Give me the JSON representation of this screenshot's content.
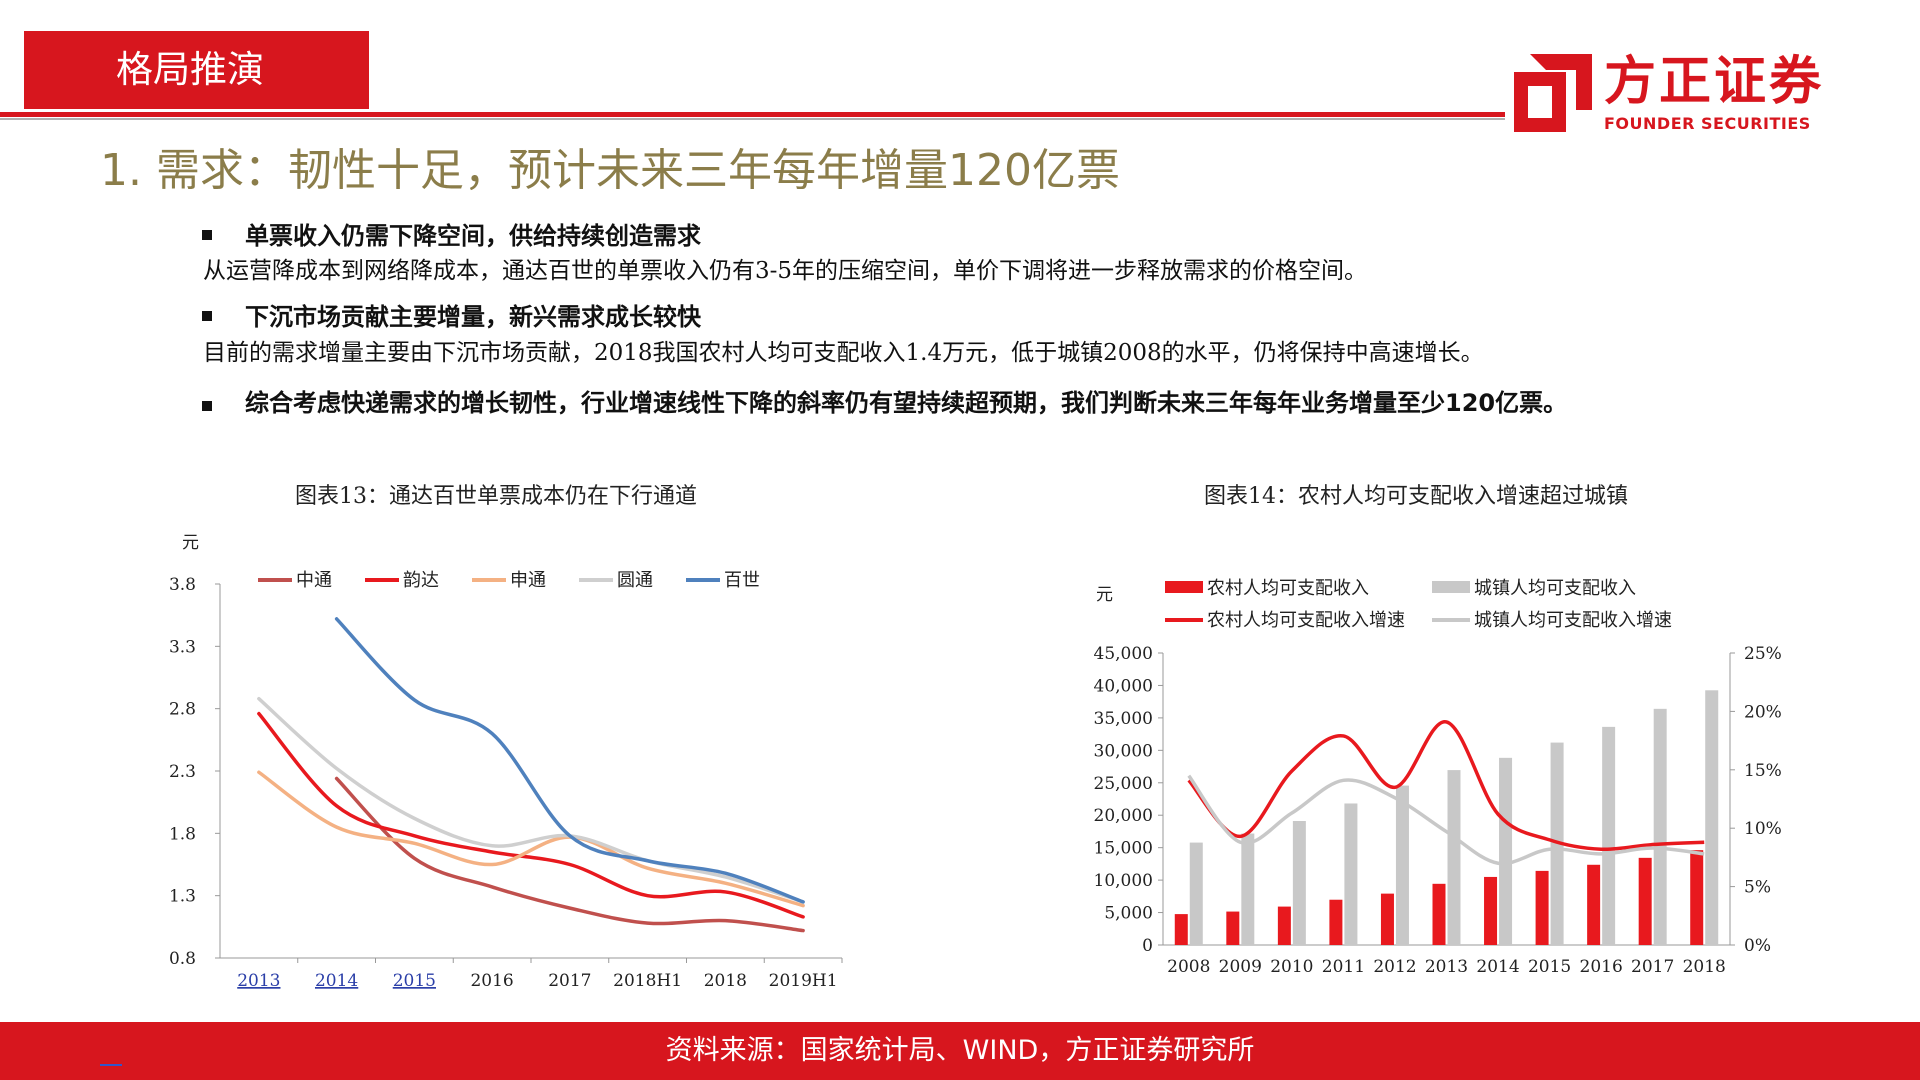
{
  "header": {
    "section_label": "格局推演",
    "logo_cn": "方正证券",
    "logo_en": "FOUNDER SECURITIES",
    "brand_color": "#d7161e"
  },
  "title": "1. 需求：韧性十足，预计未来三年每年增量120亿票",
  "bullets": [
    {
      "head": "单票收入仍需下降空间，供给持续创造需求",
      "body": "从运营降成本到网络降成本，通达百世的单票收入仍有3-5年的压缩空间，单价下调将进一步释放需求的价格空间。"
    },
    {
      "head": "下沉市场贡献主要增量，新兴需求成长较快",
      "body": "目前的需求增量主要由下沉市场贡献，2018我国农村人均可支配收入1.4万元，低于城镇2008的水平，仍将保持中高速增长。"
    },
    {
      "head": "综合考虑快递需求的增长韧性，行业增速线性下降的斜率仍有望持续超预期，我们判断未来三年每年业务增量至少120亿票。",
      "body": ""
    }
  ],
  "footer": {
    "source": "资料来源：国家统计局、WIND，方正证券研究所"
  },
  "chart_data": [
    {
      "type": "line",
      "title": "图表13：通达百世单票成本仍在下行通道",
      "ylabel": "元",
      "x": [
        "2013",
        "2014",
        "2015",
        "2016",
        "2017",
        "2018H1",
        "2018",
        "2019H1"
      ],
      "ylim": [
        0.8,
        3.8
      ],
      "yticks": [
        "3.8",
        "3.3",
        "2.8",
        "2.3",
        "1.8",
        "1.3",
        "0.8"
      ],
      "grid": false,
      "legend_position": "top",
      "series": [
        {
          "name": "中通",
          "color": "#c0504d",
          "values": [
            null,
            2.24,
            1.6,
            1.37,
            1.2,
            1.08,
            1.1,
            1.02
          ]
        },
        {
          "name": "韵达",
          "color": "#e8191e",
          "values": [
            2.76,
            2.02,
            1.78,
            1.65,
            1.55,
            1.3,
            1.33,
            1.13
          ]
        },
        {
          "name": "申通",
          "color": "#f4b183",
          "values": [
            2.29,
            1.85,
            1.72,
            1.55,
            1.77,
            1.52,
            1.4,
            1.22
          ]
        },
        {
          "name": "圆通",
          "color": "#cfcfcf",
          "values": [
            2.88,
            2.32,
            1.92,
            1.7,
            1.78,
            1.58,
            1.45,
            1.25
          ]
        },
        {
          "name": "百世",
          "color": "#4f81bd",
          "values": [
            null,
            3.52,
            2.87,
            2.6,
            1.78,
            1.58,
            1.48,
            1.25
          ]
        }
      ]
    },
    {
      "type": "bar",
      "title": "图表14：农村人均可支配收入增速超过城镇",
      "ylabel": "元",
      "categories": [
        "2008",
        "2009",
        "2010",
        "2011",
        "2012",
        "2013",
        "2014",
        "2015",
        "2016",
        "2017",
        "2018"
      ],
      "ylim": [
        0,
        45000
      ],
      "y2lim": [
        0,
        25
      ],
      "yticks": [
        "45,000",
        "40,000",
        "35,000",
        "30,000",
        "25,000",
        "20,000",
        "15,000",
        "10,000",
        "5,000",
        "0"
      ],
      "y2ticks": [
        "25%",
        "20%",
        "15%",
        "10%",
        "5%",
        "0%"
      ],
      "grid": false,
      "legend_position": "top",
      "series": [
        {
          "name": "农村人均可支配收入",
          "kind": "bar",
          "axis": "left",
          "color": "#e8191e",
          "values": [
            4761,
            5153,
            5919,
            6977,
            7917,
            9430,
            10489,
            11422,
            12363,
            13432,
            14617
          ]
        },
        {
          "name": "城镇人均可支配收入",
          "kind": "bar",
          "axis": "left",
          "color": "#c8c8c8",
          "values": [
            15781,
            17175,
            19109,
            21810,
            24565,
            26955,
            28844,
            31195,
            33616,
            36396,
            39251
          ]
        },
        {
          "name": "农村人均可支配收入增速",
          "kind": "line",
          "axis": "right",
          "color": "#e8191e",
          "values": [
            14.1,
            9.3,
            14.9,
            17.9,
            13.5,
            19.1,
            11.2,
            9.0,
            8.2,
            8.6,
            8.8
          ]
        },
        {
          "name": "城镇人均可支配收入增速",
          "kind": "line",
          "axis": "right",
          "color": "#c8c8c8",
          "values": [
            14.5,
            8.8,
            11.3,
            14.1,
            12.6,
            9.7,
            7.0,
            8.2,
            7.8,
            8.3,
            7.8
          ]
        }
      ]
    }
  ]
}
